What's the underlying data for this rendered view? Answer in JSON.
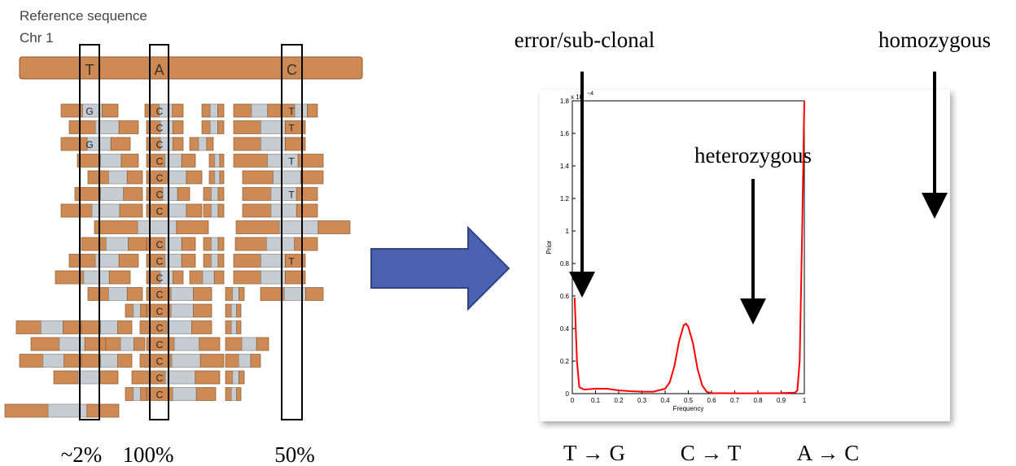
{
  "reference": {
    "title": "Reference sequence",
    "chrom": "Chr 1",
    "bases": [
      "T",
      "A",
      "C"
    ]
  },
  "pileup": [
    [
      "G",
      "C",
      "T"
    ],
    [
      null,
      "C",
      "T"
    ],
    [
      "G",
      "C",
      null
    ],
    [
      null,
      "C",
      "T"
    ],
    [
      null,
      "C",
      null
    ],
    [
      null,
      "C",
      "T"
    ],
    [
      null,
      "C",
      null
    ],
    [
      null,
      null,
      null
    ],
    [
      null,
      "C",
      null
    ],
    [
      null,
      "C",
      "T"
    ],
    [
      null,
      "C",
      null
    ],
    [
      null,
      "C",
      null
    ],
    [
      null,
      "C",
      null
    ],
    [
      null,
      "C",
      null
    ],
    [
      null,
      "C",
      null
    ],
    [
      null,
      "C",
      null
    ],
    [
      null,
      "C",
      null
    ],
    [
      null,
      "C",
      null
    ],
    [
      null,
      null,
      null
    ]
  ],
  "percentages": [
    "~2%",
    "100%",
    "50%"
  ],
  "annotations": {
    "error": "error/sub-clonal",
    "heterozygous": "heterozygous",
    "homozygous": "homozygous"
  },
  "substitutions": [
    "T → G",
    "C → T",
    "A → C"
  ],
  "chart_data": {
    "type": "line",
    "x_label": "Frequency",
    "y_label": "Prior",
    "y_multiplier": "x 10",
    "y_exponent": "−4",
    "color": "#ff0000",
    "x": [
      0.01,
      0.02,
      0.03,
      0.05,
      0.1,
      0.15,
      0.2,
      0.25,
      0.3,
      0.35,
      0.4,
      0.42,
      0.44,
      0.46,
      0.48,
      0.49,
      0.5,
      0.52,
      0.54,
      0.56,
      0.58,
      0.6,
      0.7,
      0.8,
      0.9,
      0.96,
      0.97,
      0.98,
      0.99,
      1.0
    ],
    "values": [
      0.59,
      0.2,
      0.04,
      0.025,
      0.03,
      0.03,
      0.02,
      0.015,
      0.012,
      0.012,
      0.03,
      0.07,
      0.17,
      0.32,
      0.42,
      0.43,
      0.41,
      0.31,
      0.15,
      0.05,
      0.01,
      0.003,
      0.002,
      0.002,
      0.003,
      0.006,
      0.02,
      0.2,
      0.95,
      1.8
    ],
    "xlim": [
      0,
      1
    ],
    "ylim": [
      0,
      1.8
    ],
    "xticks": [
      0,
      0.1,
      0.2,
      0.3,
      0.4,
      0.5,
      0.6,
      0.7,
      0.8,
      0.9,
      1
    ],
    "yticks": [
      0,
      0.2,
      0.4,
      0.6,
      0.8,
      1,
      1.2,
      1.4,
      1.6,
      1.8
    ]
  }
}
